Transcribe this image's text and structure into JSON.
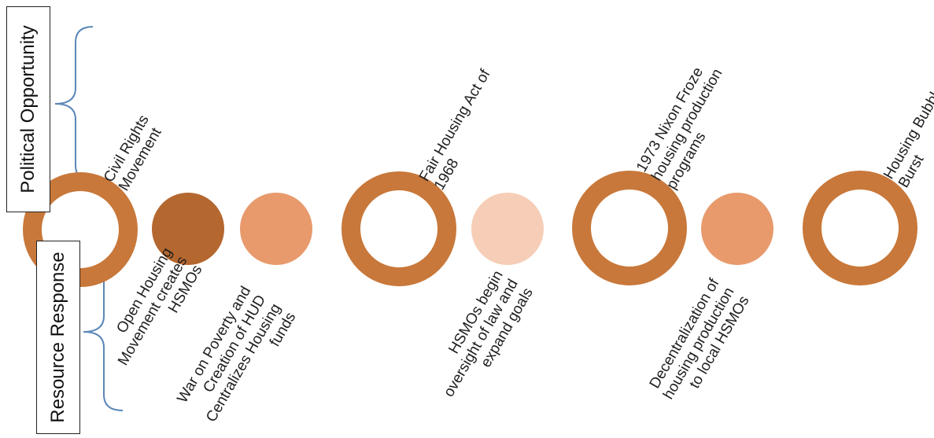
{
  "axes_labels": {
    "top": "Political Opportunity",
    "bottom": "Resource Response"
  },
  "colors": {
    "ring": "#c8783a",
    "dark_dot": "#b4672f",
    "medium_dot": "#e89a6c",
    "light_dot": "#f6cdb6",
    "brace": "#5b87b8"
  },
  "opportunity_events": [
    {
      "lines": [
        "Civil Rights",
        "Movement"
      ]
    },
    {
      "lines": [
        "Fair Housing Act of",
        "1968"
      ]
    },
    {
      "lines": [
        "1973 Nixon Froze",
        "housing production",
        "programs"
      ]
    },
    {
      "lines": [
        "Housing Bubble",
        "Burst"
      ]
    }
  ],
  "response_events": [
    {
      "lines": [
        "Open Housing",
        "Movement creates",
        "HSMOs"
      ]
    },
    {
      "lines": [
        "War on Poverty and",
        "Creation of HUD",
        "Centralizes Housing",
        "funds"
      ]
    },
    {
      "lines": [
        "HSMOs begin",
        "oversight of law and",
        "expand goals"
      ]
    },
    {
      "lines": [
        "Decentralization of",
        "housing production",
        "to local HSMOs"
      ]
    }
  ]
}
